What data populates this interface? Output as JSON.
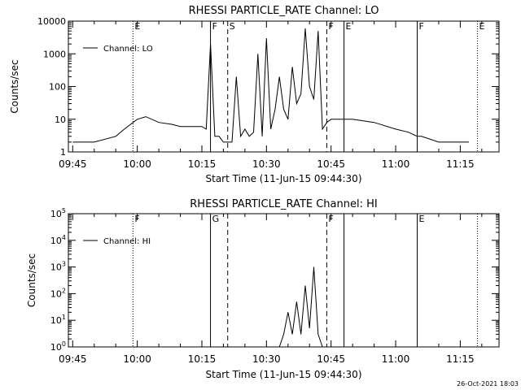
{
  "footer": {
    "timestamp": "26-Oct-2021 18:03"
  },
  "chart_data": [
    {
      "type": "line",
      "title": "RHESSI PARTICLE_RATE Channel: LO",
      "xlabel": "Start Time (11-Jun-15 09:44:30)",
      "ylabel": "Counts/sec",
      "y_scale": "log",
      "ylim": [
        1,
        10000
      ],
      "y_ticks": [
        1,
        10,
        100,
        1000,
        10000
      ],
      "y_tick_labels": [
        "1",
        "10",
        "100",
        "1000",
        "10000"
      ],
      "x_tick_labels": [
        "09:45",
        "10:00",
        "10:15",
        "10:30",
        "10:45",
        "11:00",
        "11:15"
      ],
      "legend": {
        "label": "Channel: LO",
        "placement": "top-left"
      },
      "markers": [
        {
          "time": "09:59",
          "label": "E",
          "style": "dotted"
        },
        {
          "time": "10:17",
          "label": "F",
          "style": "solid"
        },
        {
          "time": "10:21",
          "label": "S",
          "style": "dashed"
        },
        {
          "time": "10:44",
          "label": "F",
          "style": "dashed"
        },
        {
          "time": "10:48",
          "label": "E",
          "style": "solid"
        },
        {
          "time": "11:05",
          "label": "F",
          "style": "solid"
        },
        {
          "time": "11:19",
          "label": "E",
          "style": "dotted"
        }
      ],
      "series": [
        {
          "x": [
            "09:45",
            "09:50",
            "09:55",
            "09:57",
            "10:00",
            "10:02",
            "10:05",
            "10:08",
            "10:10",
            "10:13",
            "10:15",
            "10:16",
            "10:17",
            "10:18",
            "10:19",
            "10:20",
            "10:21",
            "10:22",
            "10:23",
            "10:24",
            "10:25",
            "10:26",
            "10:27",
            "10:28",
            "10:29",
            "10:30",
            "10:31",
            "10:32",
            "10:33",
            "10:34",
            "10:35",
            "10:36",
            "10:37",
            "10:38",
            "10:39",
            "10:40",
            "10:41",
            "10:42",
            "10:43",
            "10:44",
            "10:45",
            "10:48",
            "10:50",
            "10:55",
            "11:00",
            "11:03",
            "11:05",
            "11:06",
            "11:10",
            "11:15",
            "11:17"
          ],
          "y": [
            2,
            2,
            3,
            5,
            10,
            12,
            8,
            7,
            6,
            6,
            6,
            5,
            2000,
            3,
            3,
            2,
            2,
            2,
            200,
            3,
            5,
            3,
            4,
            1000,
            3,
            3000,
            5,
            20,
            200,
            20,
            10,
            400,
            30,
            60,
            6000,
            100,
            40,
            5000,
            5,
            8,
            10,
            10,
            10,
            8,
            5,
            4,
            3,
            3,
            2,
            2,
            2
          ]
        }
      ]
    },
    {
      "type": "line",
      "title": "RHESSI PARTICLE_RATE Channel: HI",
      "xlabel": "Start Time (11-Jun-15 09:44:30)",
      "ylabel": "Counts/sec",
      "y_scale": "log",
      "ylim": [
        1,
        100000
      ],
      "y_ticks": [
        1,
        10,
        100,
        1000,
        10000,
        100000
      ],
      "x_tick_labels": [
        "09:45",
        "10:00",
        "10:15",
        "10:30",
        "10:45",
        "11:00",
        "11:15"
      ],
      "legend": {
        "label": "Channel: HI",
        "placement": "top-left"
      },
      "markers": [
        {
          "time": "09:59",
          "label": "F",
          "style": "dotted"
        },
        {
          "time": "10:17",
          "label": "G",
          "style": "solid"
        },
        {
          "time": "10:21",
          "label": "",
          "style": "dashed"
        },
        {
          "time": "10:44",
          "label": "F",
          "style": "dashed"
        },
        {
          "time": "10:48",
          "label": "",
          "style": "solid"
        },
        {
          "time": "11:05",
          "label": "E",
          "style": "solid"
        },
        {
          "time": "11:19",
          "label": "",
          "style": "dotted"
        }
      ],
      "series": [
        {
          "x": [
            "10:33",
            "10:34",
            "10:35",
            "10:36",
            "10:37",
            "10:38",
            "10:39",
            "10:40",
            "10:41",
            "10:42",
            "10:43"
          ],
          "y": [
            1,
            3,
            20,
            3,
            50,
            3,
            200,
            5,
            1000,
            3,
            1
          ]
        }
      ]
    }
  ]
}
